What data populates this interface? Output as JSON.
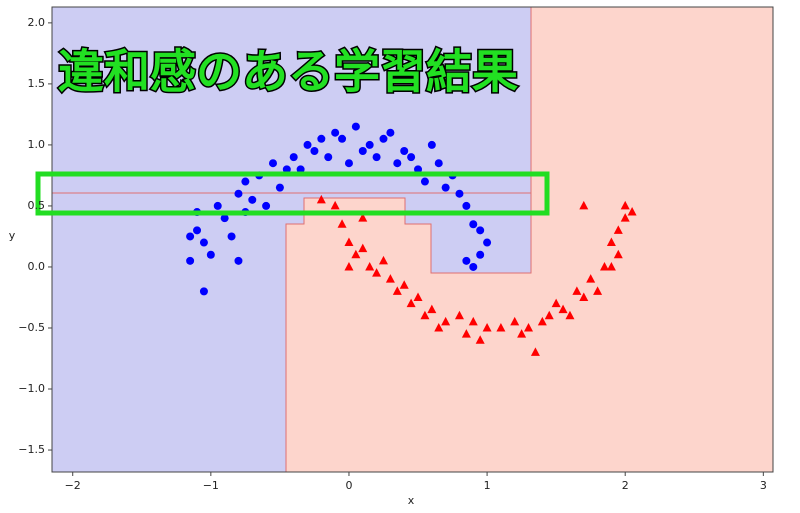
{
  "chart_data": {
    "type": "scatter",
    "annotation": "違和感のある学習結果",
    "x_label": "x",
    "y_label": "y",
    "xlim": [
      -2.15,
      3.07
    ],
    "ylim": [
      -1.68,
      2.13
    ],
    "xticks": [
      {
        "value": -2,
        "label": "−2"
      },
      {
        "value": -1,
        "label": "−1"
      },
      0,
      1,
      2,
      3
    ],
    "yticks": [
      {
        "value": 2,
        "label": "2.0"
      },
      {
        "value": 1.5,
        "label": "1.5"
      },
      {
        "value": 1,
        "label": "1.0"
      },
      {
        "value": 0.5,
        "label": "0.5"
      },
      {
        "value": 0,
        "label": "0.0"
      },
      {
        "value": -0.5,
        "label": "−0.5"
      },
      {
        "value": -1,
        "label": "−1.0"
      },
      {
        "value": -1.5,
        "label": "−1.5"
      }
    ],
    "series": [
      {
        "color": "#0000ff",
        "marker": "o",
        "x": [
          -1.15,
          -1.05,
          -1.15,
          -1.1,
          -1.05,
          -1.0,
          -0.95,
          -0.9,
          -0.85,
          -0.8,
          -0.8,
          -0.75,
          -0.7,
          -0.65,
          -0.6,
          -0.55,
          -0.5,
          -0.45,
          -0.4,
          -0.35,
          -0.3,
          -0.25,
          -0.2,
          -0.15,
          -0.1,
          -0.05,
          0.0,
          0.05,
          0.1,
          0.15,
          0.2,
          0.25,
          0.3,
          0.35,
          0.4,
          0.45,
          0.5,
          0.55,
          0.6,
          0.65,
          0.7,
          0.75,
          0.8,
          0.85,
          0.9,
          0.95,
          1.0,
          0.95,
          0.9,
          0.85,
          -1.1,
          -0.75
        ],
        "values": [
          0.05,
          -0.2,
          0.25,
          0.3,
          0.2,
          0.1,
          0.5,
          0.4,
          0.25,
          0.05,
          0.6,
          0.7,
          0.55,
          0.75,
          0.5,
          0.85,
          0.65,
          0.8,
          0.9,
          0.8,
          1.0,
          0.95,
          1.05,
          0.9,
          1.1,
          1.05,
          0.85,
          1.15,
          0.95,
          1.0,
          0.9,
          1.05,
          1.1,
          0.85,
          0.95,
          0.9,
          0.8,
          0.7,
          1.0,
          0.85,
          0.65,
          0.75,
          0.6,
          0.5,
          0.35,
          0.3,
          0.2,
          0.1,
          0.0,
          0.05,
          0.45,
          0.45
        ]
      },
      {
        "color": "#ff0000",
        "marker": "^",
        "x": [
          -0.2,
          -0.1,
          -0.05,
          0.0,
          0.05,
          0.1,
          0.15,
          0.2,
          0.25,
          0.3,
          0.35,
          0.4,
          0.45,
          0.5,
          0.55,
          0.6,
          0.65,
          0.7,
          0.8,
          0.85,
          0.9,
          0.95,
          1.0,
          1.1,
          1.2,
          1.25,
          1.3,
          1.35,
          1.4,
          1.45,
          1.5,
          1.55,
          1.6,
          1.65,
          1.7,
          1.75,
          1.8,
          1.85,
          1.9,
          1.95,
          2.0,
          2.05,
          1.95,
          1.9,
          2.0,
          1.7,
          0.1,
          0.0
        ],
        "values": [
          0.55,
          0.5,
          0.35,
          0.2,
          0.1,
          0.15,
          0.0,
          -0.05,
          0.05,
          -0.1,
          -0.2,
          -0.15,
          -0.3,
          -0.25,
          -0.4,
          -0.35,
          -0.5,
          -0.45,
          -0.4,
          -0.55,
          -0.45,
          -0.6,
          -0.5,
          -0.5,
          -0.45,
          -0.55,
          -0.5,
          -0.7,
          -0.45,
          -0.4,
          -0.3,
          -0.35,
          -0.4,
          -0.2,
          -0.25,
          -0.1,
          -0.2,
          0.0,
          0.2,
          0.3,
          0.5,
          0.45,
          0.1,
          0.0,
          0.4,
          0.5,
          0.4,
          0.0
        ]
      }
    ]
  }
}
